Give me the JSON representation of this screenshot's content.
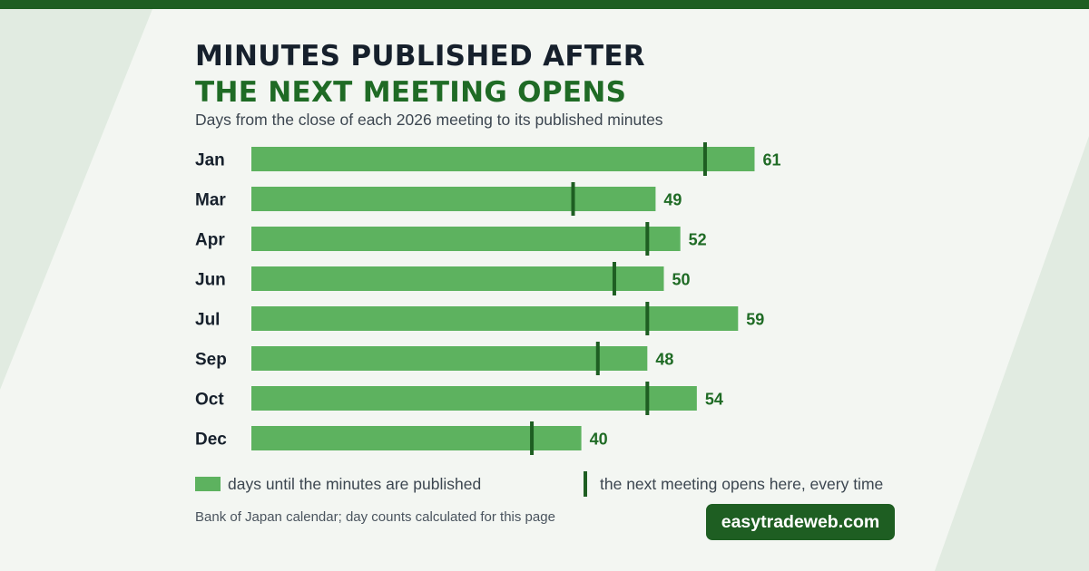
{
  "title_line1": "MINUTES PUBLISHED AFTER",
  "title_line2": "THE NEXT MEETING OPENS",
  "subtitle": "Days from the close of each 2026 meeting to its published minutes",
  "legend": {
    "bar_label": "days until the minutes are published",
    "marker_label": "the next meeting opens here, every time"
  },
  "source": "Bank of Japan calendar; day counts calculated for this page",
  "site": "easytradeweb.com",
  "colors": {
    "bar": "#5db25f",
    "marker": "#1e5e22",
    "value_text": "#1f6b25",
    "accent": "#1e5e22"
  },
  "chart_data": {
    "type": "bar",
    "orientation": "horizontal",
    "categories": [
      "Jan",
      "Mar",
      "Apr",
      "Jun",
      "Jul",
      "Sep",
      "Oct",
      "Dec"
    ],
    "values": [
      61,
      49,
      52,
      50,
      59,
      48,
      54,
      40
    ],
    "markers": [
      55,
      39,
      48,
      44,
      48,
      42,
      48,
      34
    ],
    "xlim": [
      0,
      61
    ],
    "grid": false,
    "legend_position": "bottom"
  }
}
